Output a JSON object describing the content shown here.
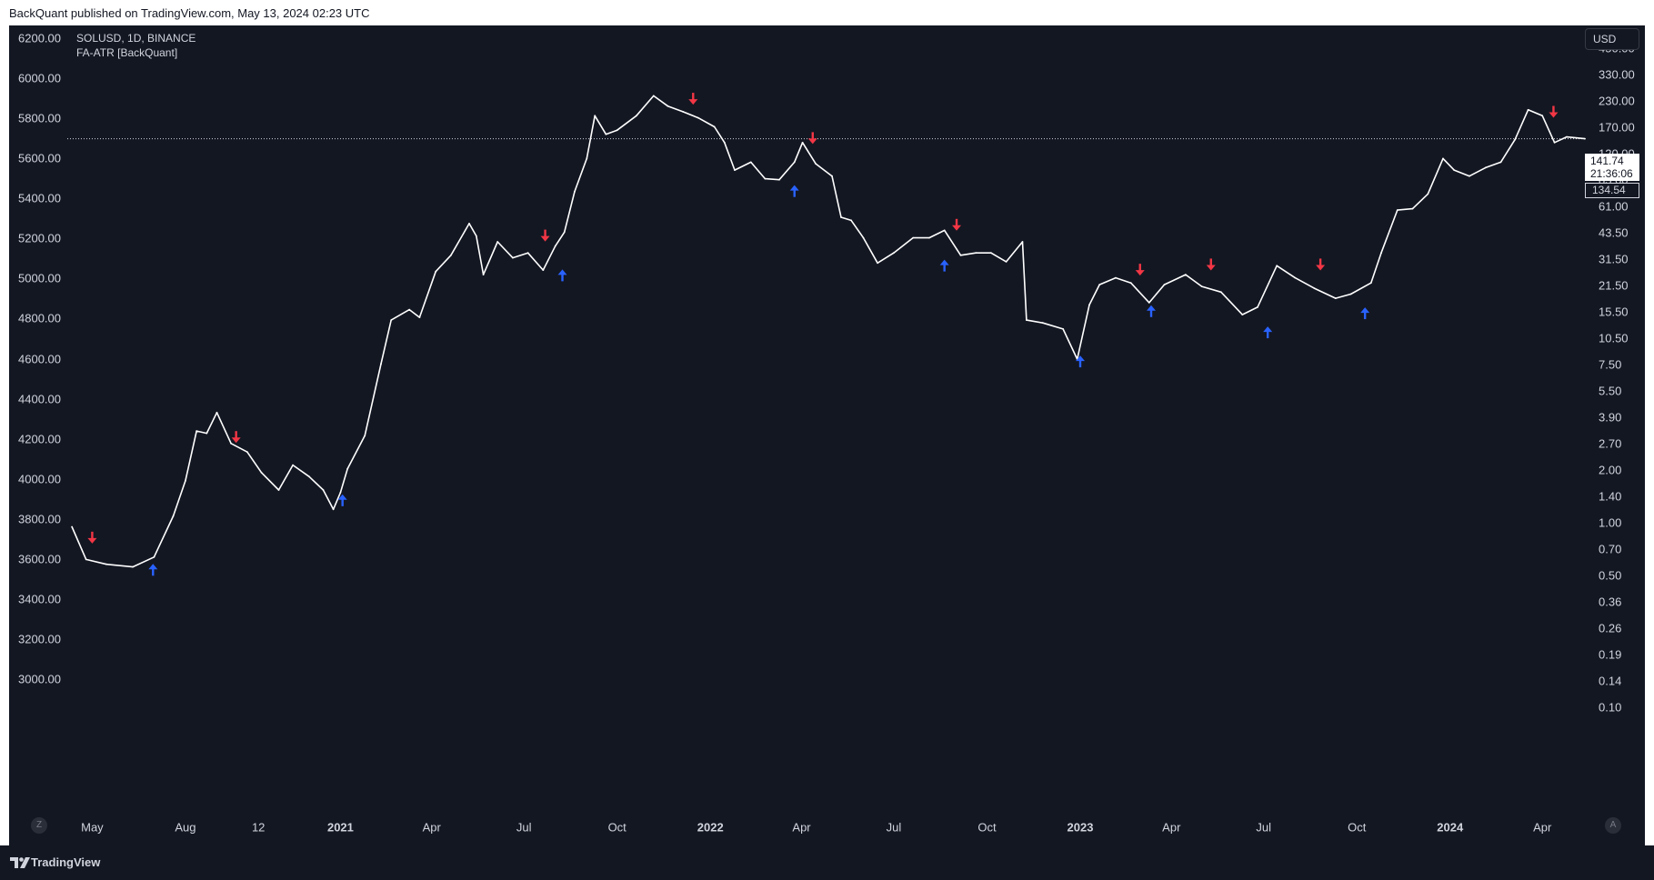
{
  "header": {
    "published_text": "BackQuant published on TradingView.com, May 13, 2024 02:23 UTC"
  },
  "legend": {
    "symbol": "SOLUSD, 1D, BINANCE",
    "indicator": "FA-ATR [BackQuant]"
  },
  "currency_button": "USD",
  "price_labels": {
    "last_price": "141.74",
    "countdown": "21:36:06",
    "prev_price": "134.54"
  },
  "corner_buttons": {
    "left": "Z",
    "right": "A"
  },
  "footer": {
    "brand": "TradingView"
  },
  "colors": {
    "background": "#131722",
    "candle": "#ffffff",
    "buy_signal": "#2962ff",
    "sell_signal": "#f23645",
    "text": "#d1d4dc"
  },
  "chart_data": {
    "type": "line",
    "title": "SOLUSD, 1D, BINANCE",
    "y_scale": "log",
    "ylim": [
      0.1,
      450
    ],
    "xlim": [
      "2020-04-10",
      "2024-05-13"
    ],
    "left_axis_ticks": [
      "6200.00",
      "6000.00",
      "5800.00",
      "5600.00",
      "5400.00",
      "5200.00",
      "5000.00",
      "4800.00",
      "4600.00",
      "4400.00",
      "4200.00",
      "4000.00",
      "3800.00",
      "3600.00",
      "3400.00",
      "3200.00",
      "3000.00"
    ],
    "right_axis_ticks": [
      "450.00",
      "330.00",
      "230.00",
      "170.00",
      "120.00",
      "85.00",
      "61.00",
      "43.50",
      "31.50",
      "21.50",
      "15.50",
      "10.50",
      "7.50",
      "5.50",
      "3.90",
      "2.70",
      "2.00",
      "1.40",
      "1.00",
      "0.70",
      "0.50",
      "0.36",
      "0.26",
      "0.19",
      "0.14",
      "0.10"
    ],
    "x_ticks": [
      {
        "label": "May",
        "date": "2020-05-01",
        "bold": false
      },
      {
        "label": "Aug",
        "date": "2020-08-01",
        "bold": false
      },
      {
        "label": "12",
        "date": "2020-10-12",
        "bold": false
      },
      {
        "label": "2021",
        "date": "2021-01-01",
        "bold": true
      },
      {
        "label": "Apr",
        "date": "2021-04-01",
        "bold": false
      },
      {
        "label": "Jul",
        "date": "2021-07-01",
        "bold": false
      },
      {
        "label": "Oct",
        "date": "2021-10-01",
        "bold": false
      },
      {
        "label": "2022",
        "date": "2022-01-01",
        "bold": true
      },
      {
        "label": "Apr",
        "date": "2022-04-01",
        "bold": false
      },
      {
        "label": "Jul",
        "date": "2022-07-01",
        "bold": false
      },
      {
        "label": "Oct",
        "date": "2022-10-01",
        "bold": false
      },
      {
        "label": "2023",
        "date": "2023-01-01",
        "bold": true
      },
      {
        "label": "Apr",
        "date": "2023-04-01",
        "bold": false
      },
      {
        "label": "Jul",
        "date": "2023-07-01",
        "bold": false
      },
      {
        "label": "Oct",
        "date": "2023-10-01",
        "bold": false
      },
      {
        "label": "2024",
        "date": "2024-01-01",
        "bold": true
      },
      {
        "label": "Apr",
        "date": "2024-04-01",
        "bold": false
      }
    ],
    "series": [
      {
        "points": [
          [
            "2020-04-11",
            1.0
          ],
          [
            "2020-04-25",
            0.66
          ],
          [
            "2020-05-15",
            0.62
          ],
          [
            "2020-06-10",
            0.6
          ],
          [
            "2020-07-01",
            0.68
          ],
          [
            "2020-07-20",
            1.15
          ],
          [
            "2020-08-01",
            1.8
          ],
          [
            "2020-08-12",
            3.4
          ],
          [
            "2020-08-22",
            3.3
          ],
          [
            "2020-09-01",
            4.3
          ],
          [
            "2020-09-15",
            2.9
          ],
          [
            "2020-10-01",
            2.6
          ],
          [
            "2020-10-15",
            2.0
          ],
          [
            "2020-11-01",
            1.6
          ],
          [
            "2020-11-15",
            2.2
          ],
          [
            "2020-12-01",
            1.9
          ],
          [
            "2020-12-15",
            1.6
          ],
          [
            "2020-12-25",
            1.25
          ],
          [
            "2021-01-01",
            1.55
          ],
          [
            "2021-01-08",
            2.1
          ],
          [
            "2021-01-25",
            3.2
          ],
          [
            "2021-02-10",
            8.0
          ],
          [
            "2021-02-20",
            14.0
          ],
          [
            "2021-03-10",
            16.0
          ],
          [
            "2021-03-20",
            14.5
          ],
          [
            "2021-04-05",
            26.0
          ],
          [
            "2021-04-20",
            32.0
          ],
          [
            "2021-05-08",
            48.0
          ],
          [
            "2021-05-15",
            41.0
          ],
          [
            "2021-05-22",
            25.0
          ],
          [
            "2021-06-05",
            38.0
          ],
          [
            "2021-06-20",
            31.0
          ],
          [
            "2021-07-05",
            33.0
          ],
          [
            "2021-07-20",
            26.5
          ],
          [
            "2021-08-01",
            36.0
          ],
          [
            "2021-08-10",
            43.0
          ],
          [
            "2021-08-20",
            72.0
          ],
          [
            "2021-09-01",
            110.0
          ],
          [
            "2021-09-09",
            190.0
          ],
          [
            "2021-09-20",
            150.0
          ],
          [
            "2021-10-01",
            158.0
          ],
          [
            "2021-10-20",
            190.0
          ],
          [
            "2021-11-06",
            245.0
          ],
          [
            "2021-11-20",
            215.0
          ],
          [
            "2021-12-05",
            200.0
          ],
          [
            "2021-12-20",
            185.0
          ],
          [
            "2022-01-05",
            165.0
          ],
          [
            "2022-01-15",
            135.0
          ],
          [
            "2022-01-25",
            95.0
          ],
          [
            "2022-02-10",
            105.0
          ],
          [
            "2022-02-24",
            85.0
          ],
          [
            "2022-03-10",
            84.0
          ],
          [
            "2022-03-25",
            105.0
          ],
          [
            "2022-04-02",
            135.0
          ],
          [
            "2022-04-15",
            103.0
          ],
          [
            "2022-05-01",
            88.0
          ],
          [
            "2022-05-10",
            52.0
          ],
          [
            "2022-05-20",
            50.0
          ],
          [
            "2022-06-01",
            40.0
          ],
          [
            "2022-06-15",
            29.0
          ],
          [
            "2022-07-01",
            33.0
          ],
          [
            "2022-07-20",
            40.0
          ],
          [
            "2022-08-05",
            40.0
          ],
          [
            "2022-08-20",
            44.0
          ],
          [
            "2022-09-05",
            32.0
          ],
          [
            "2022-09-20",
            33.0
          ],
          [
            "2022-10-05",
            33.0
          ],
          [
            "2022-10-20",
            29.5
          ],
          [
            "2022-11-05",
            38.0
          ],
          [
            "2022-11-09",
            14.0
          ],
          [
            "2022-11-25",
            13.5
          ],
          [
            "2022-12-15",
            12.5
          ],
          [
            "2022-12-29",
            8.5
          ],
          [
            "2023-01-10",
            17.0
          ],
          [
            "2023-01-20",
            22.0
          ],
          [
            "2023-02-05",
            24.0
          ],
          [
            "2023-02-20",
            22.5
          ],
          [
            "2023-03-10",
            17.5
          ],
          [
            "2023-03-25",
            22.0
          ],
          [
            "2023-04-15",
            25.0
          ],
          [
            "2023-05-01",
            21.5
          ],
          [
            "2023-05-20",
            20.0
          ],
          [
            "2023-06-10",
            15.0
          ],
          [
            "2023-06-25",
            16.5
          ],
          [
            "2023-07-14",
            28.0
          ],
          [
            "2023-08-01",
            24.0
          ],
          [
            "2023-08-20",
            21.0
          ],
          [
            "2023-09-10",
            18.5
          ],
          [
            "2023-09-25",
            19.5
          ],
          [
            "2023-10-15",
            22.5
          ],
          [
            "2023-10-25",
            33.0
          ],
          [
            "2023-11-10",
            57.0
          ],
          [
            "2023-11-25",
            58.0
          ],
          [
            "2023-12-10",
            70.0
          ],
          [
            "2023-12-25",
            110.0
          ],
          [
            "2024-01-05",
            95.0
          ],
          [
            "2024-01-20",
            88.0
          ],
          [
            "2024-02-05",
            98.0
          ],
          [
            "2024-02-20",
            105.0
          ],
          [
            "2024-03-05",
            140.0
          ],
          [
            "2024-03-18",
            205.0
          ],
          [
            "2024-04-01",
            190.0
          ],
          [
            "2024-04-13",
            135.0
          ],
          [
            "2024-04-25",
            145.0
          ],
          [
            "2024-05-13",
            141.74
          ]
        ]
      }
    ],
    "signals": [
      {
        "date": "2020-05-01",
        "price": 0.72,
        "dir": "down"
      },
      {
        "date": "2020-06-30",
        "price": 0.7,
        "dir": "up"
      },
      {
        "date": "2020-09-20",
        "price": 2.6,
        "dir": "down"
      },
      {
        "date": "2021-01-03",
        "price": 1.7,
        "dir": "up"
      },
      {
        "date": "2021-07-22",
        "price": 34.0,
        "dir": "down"
      },
      {
        "date": "2021-08-08",
        "price": 30.0,
        "dir": "up"
      },
      {
        "date": "2021-12-15",
        "price": 195.0,
        "dir": "down"
      },
      {
        "date": "2022-03-25",
        "price": 88.0,
        "dir": "up"
      },
      {
        "date": "2022-04-12",
        "price": 118.0,
        "dir": "down"
      },
      {
        "date": "2022-08-20",
        "price": 34.0,
        "dir": "up"
      },
      {
        "date": "2022-09-01",
        "price": 39.0,
        "dir": "down"
      },
      {
        "date": "2023-01-01",
        "price": 10.0,
        "dir": "up"
      },
      {
        "date": "2023-03-01",
        "price": 22.0,
        "dir": "down"
      },
      {
        "date": "2023-03-12",
        "price": 19.0,
        "dir": "up"
      },
      {
        "date": "2023-05-10",
        "price": 23.5,
        "dir": "down"
      },
      {
        "date": "2023-07-05",
        "price": 14.5,
        "dir": "up"
      },
      {
        "date": "2023-08-26",
        "price": 23.5,
        "dir": "down"
      },
      {
        "date": "2023-10-09",
        "price": 18.5,
        "dir": "up"
      },
      {
        "date": "2024-04-12",
        "price": 165.0,
        "dir": "down"
      }
    ]
  }
}
